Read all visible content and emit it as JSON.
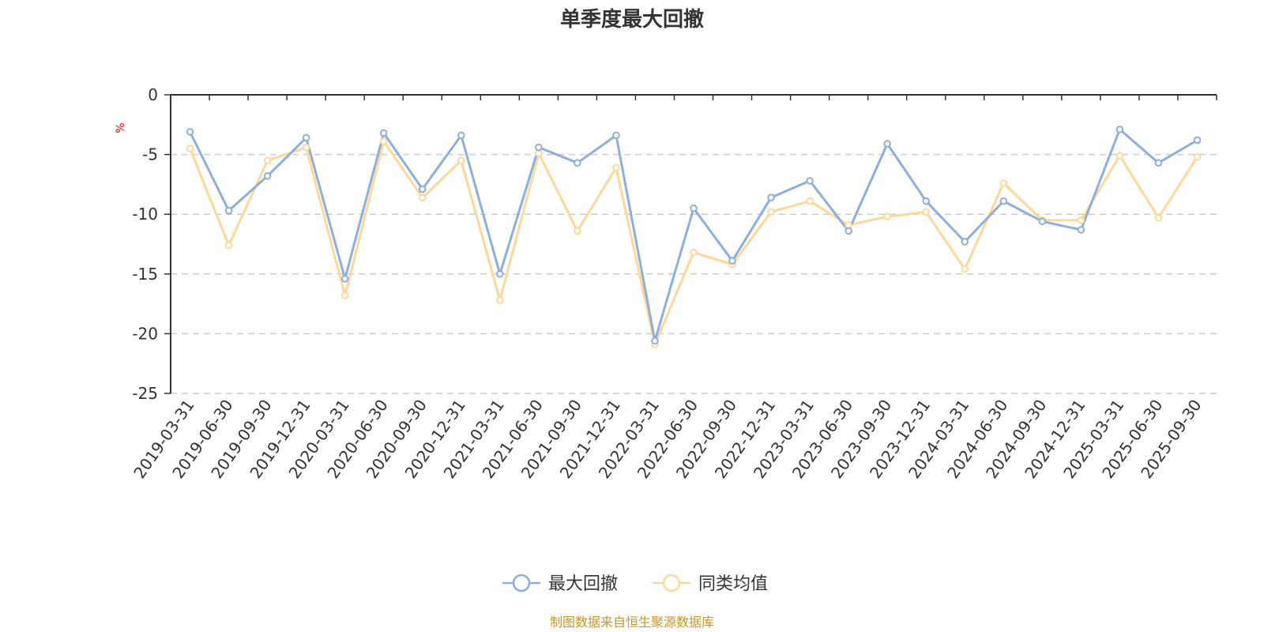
{
  "chart_data": {
    "type": "line",
    "title": "单季度最大回撤",
    "ylabel": "%",
    "xlabel": "",
    "ylim": [
      -25,
      0
    ],
    "yticks": [
      0,
      -5,
      -10,
      -15,
      -20,
      -25
    ],
    "grid": true,
    "legend_position": "bottom-center",
    "categories": [
      "2019-03-31",
      "2019-06-30",
      "2019-09-30",
      "2019-12-31",
      "2020-03-31",
      "2020-06-30",
      "2020-09-30",
      "2020-12-31",
      "2021-03-31",
      "2021-06-30",
      "2021-09-30",
      "2021-12-31",
      "2022-03-31",
      "2022-06-30",
      "2022-09-30",
      "2022-12-31",
      "2023-03-31",
      "2023-06-30",
      "2023-09-30",
      "2023-12-31",
      "2024-03-31",
      "2024-06-30",
      "2024-09-30",
      "2024-12-31",
      "2025-03-31",
      "2025-06-30",
      "2025-09-30"
    ],
    "series": [
      {
        "name": "最大回撤",
        "color": "#8eaedb",
        "values": [
          -3.1,
          -9.7,
          -6.8,
          -3.6,
          -15.4,
          -3.2,
          -7.9,
          -3.4,
          -15.0,
          -4.4,
          -5.7,
          -3.4,
          -20.6,
          -9.5,
          -13.9,
          -8.6,
          -7.2,
          -11.4,
          -4.1,
          -8.9,
          -12.3,
          -8.9,
          -10.6,
          -11.3,
          -2.9,
          -5.7,
          -3.8
        ]
      },
      {
        "name": "同类均值",
        "color": "#fdd89a",
        "values": [
          -4.5,
          -12.6,
          -5.5,
          -4.4,
          -16.8,
          -3.9,
          -8.6,
          -5.5,
          -17.2,
          -4.9,
          -11.4,
          -6.1,
          -20.9,
          -13.2,
          -14.2,
          -9.8,
          -8.9,
          -10.9,
          -10.2,
          -9.8,
          -14.6,
          -7.4,
          -10.5,
          -10.5,
          -5.1,
          -10.3,
          -5.2
        ]
      }
    ]
  },
  "source_text": "制图数据来自恒生聚源数据库"
}
